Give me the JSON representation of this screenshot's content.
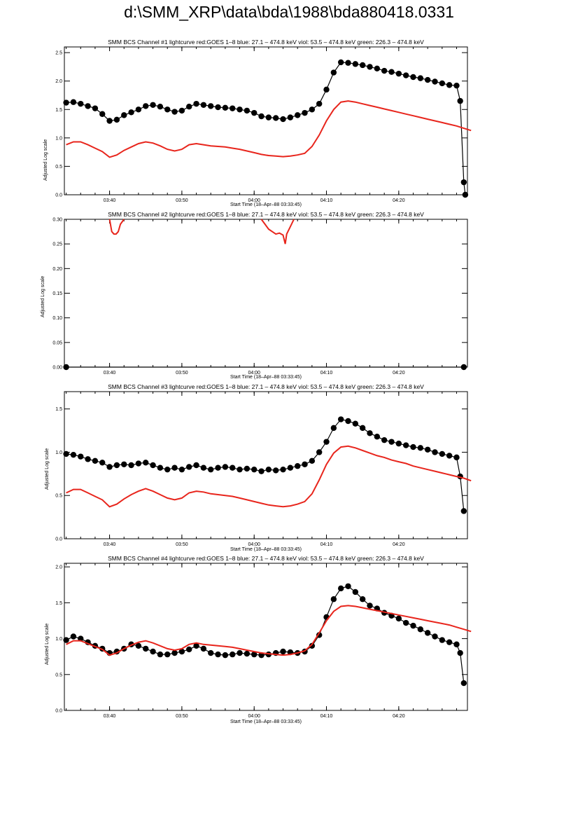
{
  "page": {
    "title": "d:\\SMM_XRP\\data\\bda\\1988\\bda880418.0331"
  },
  "colors": {
    "goes": "#e8251c",
    "bcs": "#000000",
    "axes": "#000000"
  },
  "chart_data": [
    {
      "type": "scatter",
      "title": "SMM BCS Channel #1 lightcurve  red:GOES 1–8  blue: 27.1 – 474.8 keV  viol: 53.5 – 474.8 keV  green: 226.3 – 474.8 keV",
      "xlabel": "Start Time (18–Apr–88 03:33:45)",
      "ylabel": "Adjusted Log scale",
      "x_ticks": [
        "03:40",
        "03:50",
        "04:00",
        "04:10",
        "04:20"
      ],
      "y_ticks": [
        "0.0",
        "0.5",
        "1.0",
        "1.5",
        "2.0",
        "2.5"
      ],
      "ylim": [
        0,
        2.6
      ],
      "grid": false,
      "series": [
        {
          "style": "black dots with line",
          "x": [
            "03:34",
            "03:35",
            "03:36",
            "03:37",
            "03:38",
            "03:39",
            "03:40",
            "03:41",
            "03:42",
            "03:43",
            "03:44",
            "03:45",
            "03:46",
            "03:47",
            "03:48",
            "03:49",
            "03:50",
            "03:51",
            "03:52",
            "03:53",
            "03:54",
            "03:55",
            "03:56",
            "03:57",
            "03:58",
            "03:59",
            "04:00",
            "04:01",
            "04:02",
            "04:03",
            "04:04",
            "04:05",
            "04:06",
            "04:07",
            "04:08",
            "04:09",
            "04:10",
            "04:11",
            "04:12",
            "04:13",
            "04:14",
            "04:15",
            "04:16",
            "04:17",
            "04:18",
            "04:19",
            "04:20",
            "04:21",
            "04:22",
            "04:23",
            "04:24",
            "04:25",
            "04:26",
            "04:27",
            "04:28",
            "04:28.5",
            "04:29",
            "04:29.2"
          ],
          "y": [
            1.62,
            1.63,
            1.6,
            1.56,
            1.52,
            1.42,
            1.3,
            1.32,
            1.4,
            1.45,
            1.5,
            1.56,
            1.58,
            1.55,
            1.5,
            1.46,
            1.48,
            1.55,
            1.6,
            1.58,
            1.56,
            1.54,
            1.53,
            1.52,
            1.5,
            1.48,
            1.44,
            1.38,
            1.36,
            1.35,
            1.33,
            1.36,
            1.4,
            1.44,
            1.5,
            1.6,
            1.85,
            2.15,
            2.33,
            2.32,
            2.3,
            2.28,
            2.25,
            2.22,
            2.18,
            2.16,
            2.13,
            2.1,
            2.07,
            2.05,
            2.02,
            1.99,
            1.96,
            1.93,
            1.92,
            1.65,
            0.22,
            0.0
          ]
        },
        {
          "style": "red line",
          "x": [
            "03:34",
            "03:35",
            "03:36",
            "03:37",
            "03:38",
            "03:39",
            "03:40",
            "03:41",
            "03:42",
            "03:43",
            "03:44",
            "03:45",
            "03:46",
            "03:47",
            "03:48",
            "03:49",
            "03:50",
            "03:51",
            "03:52",
            "03:53",
            "03:54",
            "03:55",
            "03:56",
            "03:57",
            "03:58",
            "03:59",
            "04:00",
            "04:01",
            "04:02",
            "04:03",
            "04:04",
            "04:05",
            "04:06",
            "04:07",
            "04:08",
            "04:09",
            "04:10",
            "04:11",
            "04:12",
            "04:13",
            "04:14",
            "04:15",
            "04:16",
            "04:17",
            "04:18",
            "04:19",
            "04:20",
            "04:21",
            "04:22",
            "04:23",
            "04:24",
            "04:25",
            "04:26",
            "04:27",
            "04:28",
            "04:29",
            "04:30"
          ],
          "y": [
            0.88,
            0.93,
            0.93,
            0.88,
            0.82,
            0.76,
            0.66,
            0.7,
            0.78,
            0.84,
            0.9,
            0.93,
            0.91,
            0.86,
            0.8,
            0.77,
            0.8,
            0.88,
            0.9,
            0.88,
            0.86,
            0.85,
            0.84,
            0.82,
            0.8,
            0.77,
            0.74,
            0.71,
            0.69,
            0.68,
            0.67,
            0.68,
            0.7,
            0.73,
            0.85,
            1.05,
            1.3,
            1.5,
            1.63,
            1.65,
            1.63,
            1.6,
            1.57,
            1.54,
            1.51,
            1.48,
            1.45,
            1.42,
            1.39,
            1.36,
            1.33,
            1.3,
            1.27,
            1.24,
            1.21,
            1.17,
            1.13
          ]
        }
      ]
    },
    {
      "type": "scatter",
      "title": "SMM BCS Channel #2 lightcurve  red:GOES 1–8  blue: 27.1 – 474.8 keV  viol: 53.5 – 474.8 keV  green: 226.3 – 474.8 keV",
      "xlabel": "Start Time (18–Apr–88 03:33:45)",
      "ylabel": "Adjusted Log scale",
      "x_ticks": [
        "03:40",
        "03:50",
        "04:00",
        "04:10",
        "04:20"
      ],
      "y_ticks": [
        "0.00",
        "0.05",
        "0.10",
        "0.15",
        "0.20",
        "0.25",
        "0.30"
      ],
      "ylim": [
        0,
        0.3
      ],
      "grid": false,
      "series": [
        {
          "style": "black dots with line",
          "x": [
            "03:34",
            "04:29"
          ],
          "y": [
            0.0,
            0.0
          ]
        },
        {
          "style": "red line",
          "x": [
            "03:40.0",
            "03:40.3",
            "03:40.6",
            "03:40.9",
            "03:41.2",
            "03:41.5",
            "03:42.0"
          ],
          "y": [
            0.3,
            0.275,
            0.27,
            0.27,
            0.275,
            0.29,
            0.3
          ]
        },
        {
          "style": "red line",
          "x": [
            "04:01.0",
            "04:01.5",
            "04:02.0",
            "04:02.5",
            "04:03.0",
            "04:03.5",
            "04:04.0",
            "04:04.3",
            "04:04.5",
            "04:05.0",
            "04:05.5"
          ],
          "y": [
            0.3,
            0.29,
            0.28,
            0.275,
            0.27,
            0.272,
            0.268,
            0.25,
            0.27,
            0.285,
            0.3
          ]
        }
      ]
    },
    {
      "type": "scatter",
      "title": "SMM BCS Channel #3 lightcurve  red:GOES 1–8  blue: 27.1 – 474.8 keV  viol: 53.5 – 474.8 keV  green: 226.3 – 474.8 keV",
      "xlabel": "Start Time (18–Apr–88 03:33:45)",
      "ylabel": "Adjusted Log scale",
      "x_ticks": [
        "03:40",
        "03:50",
        "04:00",
        "04:10",
        "04:20"
      ],
      "y_ticks": [
        "0.0",
        "0.5",
        "1.0",
        "1.5"
      ],
      "ylim": [
        0,
        1.7
      ],
      "grid": false,
      "series": [
        {
          "style": "black dots with line",
          "x": [
            "03:34",
            "03:35",
            "03:36",
            "03:37",
            "03:38",
            "03:39",
            "03:40",
            "03:41",
            "03:42",
            "03:43",
            "03:44",
            "03:45",
            "03:46",
            "03:47",
            "03:48",
            "03:49",
            "03:50",
            "03:51",
            "03:52",
            "03:53",
            "03:54",
            "03:55",
            "03:56",
            "03:57",
            "03:58",
            "03:59",
            "04:00",
            "04:01",
            "04:02",
            "04:03",
            "04:04",
            "04:05",
            "04:06",
            "04:07",
            "04:08",
            "04:09",
            "04:10",
            "04:11",
            "04:12",
            "04:13",
            "04:14",
            "04:15",
            "04:16",
            "04:17",
            "04:18",
            "04:19",
            "04:20",
            "04:21",
            "04:22",
            "04:23",
            "04:24",
            "04:25",
            "04:26",
            "04:27",
            "04:28",
            "04:28.5",
            "04:29"
          ],
          "y": [
            0.98,
            0.97,
            0.95,
            0.92,
            0.9,
            0.88,
            0.83,
            0.85,
            0.86,
            0.85,
            0.87,
            0.88,
            0.85,
            0.82,
            0.8,
            0.82,
            0.8,
            0.83,
            0.85,
            0.82,
            0.8,
            0.82,
            0.83,
            0.82,
            0.8,
            0.81,
            0.8,
            0.78,
            0.8,
            0.79,
            0.8,
            0.82,
            0.84,
            0.86,
            0.9,
            1.0,
            1.12,
            1.28,
            1.38,
            1.36,
            1.33,
            1.28,
            1.22,
            1.18,
            1.14,
            1.12,
            1.1,
            1.08,
            1.06,
            1.05,
            1.03,
            1.0,
            0.98,
            0.96,
            0.94,
            0.72,
            0.32
          ]
        },
        {
          "style": "red line",
          "x": [
            "03:34",
            "03:35",
            "03:36",
            "03:37",
            "03:38",
            "03:39",
            "03:40",
            "03:41",
            "03:42",
            "03:43",
            "03:44",
            "03:45",
            "03:46",
            "03:47",
            "03:48",
            "03:49",
            "03:50",
            "03:51",
            "03:52",
            "03:53",
            "03:54",
            "03:55",
            "03:56",
            "03:57",
            "03:58",
            "03:59",
            "04:00",
            "04:01",
            "04:02",
            "04:03",
            "04:04",
            "04:05",
            "04:06",
            "04:07",
            "04:08",
            "04:09",
            "04:10",
            "04:11",
            "04:12",
            "04:13",
            "04:14",
            "04:15",
            "04:16",
            "04:17",
            "04:18",
            "04:19",
            "04:20",
            "04:21",
            "04:22",
            "04:23",
            "04:24",
            "04:25",
            "04:26",
            "04:27",
            "04:28",
            "04:29",
            "04:30"
          ],
          "y": [
            0.53,
            0.57,
            0.57,
            0.53,
            0.49,
            0.45,
            0.37,
            0.4,
            0.46,
            0.51,
            0.55,
            0.58,
            0.55,
            0.51,
            0.47,
            0.45,
            0.47,
            0.53,
            0.55,
            0.54,
            0.52,
            0.51,
            0.5,
            0.49,
            0.47,
            0.45,
            0.43,
            0.41,
            0.39,
            0.38,
            0.37,
            0.38,
            0.4,
            0.43,
            0.52,
            0.68,
            0.86,
            0.99,
            1.06,
            1.07,
            1.05,
            1.02,
            0.99,
            0.96,
            0.94,
            0.91,
            0.89,
            0.87,
            0.84,
            0.82,
            0.8,
            0.78,
            0.76,
            0.74,
            0.72,
            0.7,
            0.67
          ]
        }
      ]
    },
    {
      "type": "scatter",
      "title": "SMM BCS Channel #4 lightcurve  red:GOES 1–8  blue: 27.1 – 474.8 keV  viol: 53.5 – 474.8 keV  green: 226.3 – 474.8 keV",
      "xlabel": "Start Time (18–Apr–88 03:33:45)",
      "ylabel": "Adjusted Log scale",
      "x_ticks": [
        "03:40",
        "03:50",
        "04:00",
        "04:10",
        "04:20"
      ],
      "y_ticks": [
        "0.0",
        "0.5",
        "1.0",
        "1.5",
        "2.0"
      ],
      "ylim": [
        0,
        2.05
      ],
      "grid": false,
      "series": [
        {
          "style": "black dots with line",
          "x": [
            "03:34",
            "03:35",
            "03:36",
            "03:37",
            "03:38",
            "03:39",
            "03:40",
            "03:41",
            "03:42",
            "03:43",
            "03:44",
            "03:45",
            "03:46",
            "03:47",
            "03:48",
            "03:49",
            "03:50",
            "03:51",
            "03:52",
            "03:53",
            "03:54",
            "03:55",
            "03:56",
            "03:57",
            "03:58",
            "03:59",
            "04:00",
            "04:01",
            "04:02",
            "04:03",
            "04:04",
            "04:05",
            "04:06",
            "04:07",
            "04:08",
            "04:09",
            "04:10",
            "04:11",
            "04:12",
            "04:13",
            "04:14",
            "04:15",
            "04:16",
            "04:17",
            "04:18",
            "04:19",
            "04:20",
            "04:21",
            "04:22",
            "04:23",
            "04:24",
            "04:25",
            "04:26",
            "04:27",
            "04:28",
            "04:28.5",
            "04:29"
          ],
          "y": [
            0.98,
            1.03,
            1.0,
            0.95,
            0.9,
            0.86,
            0.8,
            0.82,
            0.86,
            0.92,
            0.9,
            0.86,
            0.82,
            0.78,
            0.78,
            0.8,
            0.82,
            0.85,
            0.9,
            0.86,
            0.8,
            0.78,
            0.77,
            0.78,
            0.8,
            0.79,
            0.78,
            0.77,
            0.78,
            0.8,
            0.82,
            0.81,
            0.8,
            0.82,
            0.9,
            1.05,
            1.3,
            1.55,
            1.7,
            1.73,
            1.65,
            1.55,
            1.46,
            1.42,
            1.36,
            1.32,
            1.28,
            1.22,
            1.18,
            1.13,
            1.08,
            1.03,
            0.98,
            0.95,
            0.92,
            0.8,
            0.38
          ]
        },
        {
          "style": "red line",
          "x": [
            "03:34",
            "03:35",
            "03:36",
            "03:37",
            "03:38",
            "03:39",
            "03:40",
            "03:41",
            "03:42",
            "03:43",
            "03:44",
            "03:45",
            "03:46",
            "03:47",
            "03:48",
            "03:49",
            "03:50",
            "03:51",
            "03:52",
            "03:53",
            "03:54",
            "03:55",
            "03:56",
            "03:57",
            "03:58",
            "03:59",
            "04:00",
            "04:01",
            "04:02",
            "04:03",
            "04:04",
            "04:05",
            "04:06",
            "04:07",
            "04:08",
            "04:09",
            "04:10",
            "04:11",
            "04:12",
            "04:13",
            "04:14",
            "04:15",
            "04:16",
            "04:17",
            "04:18",
            "04:19",
            "04:20",
            "04:21",
            "04:22",
            "04:23",
            "04:24",
            "04:25",
            "04:26",
            "04:27",
            "04:28",
            "04:29",
            "04:30"
          ],
          "y": [
            0.92,
            0.97,
            0.97,
            0.93,
            0.89,
            0.85,
            0.77,
            0.8,
            0.86,
            0.91,
            0.95,
            0.97,
            0.94,
            0.9,
            0.86,
            0.84,
            0.86,
            0.92,
            0.94,
            0.92,
            0.91,
            0.9,
            0.89,
            0.88,
            0.86,
            0.84,
            0.82,
            0.8,
            0.79,
            0.78,
            0.77,
            0.78,
            0.8,
            0.83,
            0.92,
            1.08,
            1.25,
            1.38,
            1.45,
            1.46,
            1.45,
            1.43,
            1.41,
            1.39,
            1.37,
            1.35,
            1.33,
            1.31,
            1.29,
            1.27,
            1.25,
            1.23,
            1.21,
            1.19,
            1.16,
            1.13,
            1.1
          ]
        }
      ]
    }
  ]
}
